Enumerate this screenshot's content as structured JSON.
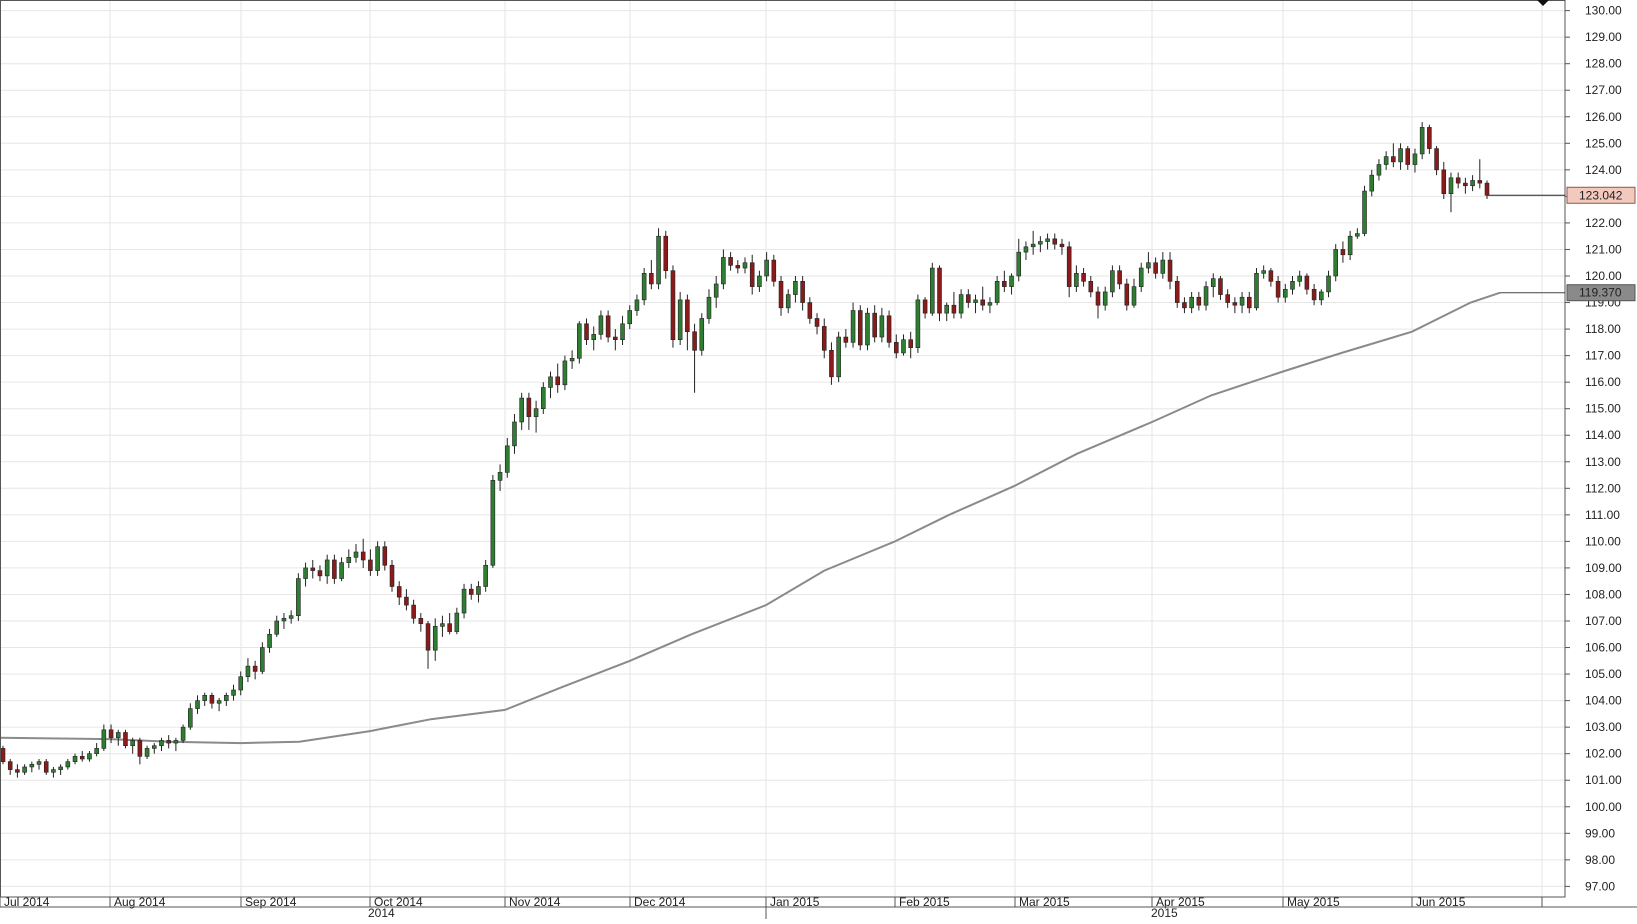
{
  "chart_data": {
    "type": "candlestick",
    "y_axis": {
      "ylim": [
        96.6,
        130.4
      ],
      "ticks": [
        "130.00",
        "129.00",
        "128.00",
        "127.00",
        "126.00",
        "125.00",
        "124.00",
        "123.00",
        "122.00",
        "121.00",
        "120.00",
        "119.00",
        "118.00",
        "117.00",
        "116.00",
        "115.00",
        "114.00",
        "113.00",
        "112.00",
        "111.00",
        "110.00",
        "109.00",
        "108.00",
        "107.00",
        "106.00",
        "105.00",
        "104.00",
        "103.00",
        "102.00",
        "101.00",
        "100.00",
        "99.00",
        "98.00",
        "97.00"
      ],
      "position": "right"
    },
    "x_axis": {
      "months": [
        "Jul 2014",
        "Aug 2014",
        "Sep 2014",
        "Oct 2014",
        "Nov 2014",
        "Dec 2014",
        "Jan 2015",
        "Feb 2015",
        "Mar 2015",
        "Apr 2015",
        "May 2015",
        "Jun 2015"
      ],
      "years": [
        "2014",
        "2015"
      ]
    },
    "grid": true,
    "last_price": {
      "value": 123.042,
      "label": "123.042",
      "color": "#f4c9bd"
    },
    "moving_average": {
      "label": "119.370",
      "value": 119.37,
      "color": "#8a8a8a",
      "points": [
        [
          "Jul 1 2014",
          102.6
        ],
        [
          "Aug 1 2014",
          102.55
        ],
        [
          "Aug 15 2014",
          102.45
        ],
        [
          "Sep 1 2014",
          102.4
        ],
        [
          "Sep 15 2014",
          102.45
        ],
        [
          "Oct 1 2014",
          102.85
        ],
        [
          "Oct 15 2014",
          103.3
        ],
        [
          "Nov 1 2014",
          103.65
        ],
        [
          "Nov 15 2014",
          104.5
        ],
        [
          "Dec 1 2014",
          105.5
        ],
        [
          "Dec 15 2014",
          106.5
        ],
        [
          "Jan 1 2015",
          107.6
        ],
        [
          "Jan 15 2015",
          108.9
        ],
        [
          "Feb 1 2015",
          110.0
        ],
        [
          "Feb 15 2015",
          111.0
        ],
        [
          "Mar 1 2015",
          112.1
        ],
        [
          "Mar 15 2015",
          113.3
        ],
        [
          "Apr 1 2015",
          114.5
        ],
        [
          "Apr 15 2015",
          115.5
        ],
        [
          "May 1 2015",
          116.4
        ],
        [
          "May 15 2015",
          117.1
        ],
        [
          "Jun 1 2015",
          117.9
        ],
        [
          "Jun 15 2015",
          119.0
        ],
        [
          "Jun 22 2015",
          119.37
        ]
      ]
    },
    "up_color": "#2e7d32",
    "down_color": "#8b1a1a",
    "candles": [
      [
        102.2,
        102.3,
        101.6,
        101.7
      ],
      [
        101.7,
        101.8,
        101.2,
        101.4
      ],
      [
        101.4,
        101.6,
        101.1,
        101.3
      ],
      [
        101.3,
        101.6,
        101.2,
        101.5
      ],
      [
        101.5,
        101.7,
        101.3,
        101.6
      ],
      [
        101.6,
        101.8,
        101.4,
        101.7
      ],
      [
        101.7,
        101.8,
        101.2,
        101.3
      ],
      [
        101.3,
        101.5,
        101.1,
        101.4
      ],
      [
        101.4,
        101.6,
        101.2,
        101.5
      ],
      [
        101.5,
        101.8,
        101.4,
        101.7
      ],
      [
        101.7,
        102.0,
        101.6,
        101.9
      ],
      [
        101.9,
        102.1,
        101.7,
        101.8
      ],
      [
        101.8,
        102.1,
        101.7,
        102.0
      ],
      [
        102.0,
        102.4,
        101.9,
        102.2
      ],
      [
        102.2,
        103.1,
        102.1,
        102.9
      ],
      [
        102.9,
        103.1,
        102.4,
        102.6
      ],
      [
        102.6,
        102.9,
        102.3,
        102.8
      ],
      [
        102.8,
        102.9,
        102.2,
        102.3
      ],
      [
        102.3,
        102.6,
        102.0,
        102.5
      ],
      [
        102.5,
        102.6,
        101.6,
        101.9
      ],
      [
        101.9,
        102.3,
        101.8,
        102.2
      ],
      [
        102.2,
        102.4,
        102.0,
        102.3
      ],
      [
        102.3,
        102.6,
        102.1,
        102.5
      ],
      [
        102.5,
        102.7,
        102.2,
        102.4
      ],
      [
        102.4,
        102.6,
        102.1,
        102.5
      ],
      [
        102.5,
        103.1,
        102.4,
        103.0
      ],
      [
        103.0,
        103.9,
        102.9,
        103.7
      ],
      [
        103.7,
        104.2,
        103.5,
        104.0
      ],
      [
        104.0,
        104.3,
        103.8,
        104.2
      ],
      [
        104.2,
        104.3,
        103.7,
        103.9
      ],
      [
        103.9,
        104.1,
        103.6,
        104.0
      ],
      [
        104.0,
        104.3,
        103.8,
        104.2
      ],
      [
        104.2,
        104.6,
        104.0,
        104.4
      ],
      [
        104.4,
        105.1,
        104.2,
        104.9
      ],
      [
        104.9,
        105.6,
        104.7,
        105.3
      ],
      [
        105.3,
        105.5,
        104.8,
        105.1
      ],
      [
        105.1,
        106.2,
        105.0,
        106.0
      ],
      [
        106.0,
        106.7,
        105.8,
        106.5
      ],
      [
        106.5,
        107.2,
        106.4,
        107.0
      ],
      [
        107.0,
        107.3,
        106.7,
        107.1
      ],
      [
        107.1,
        107.4,
        106.9,
        107.2
      ],
      [
        107.2,
        108.8,
        107.0,
        108.6
      ],
      [
        108.6,
        109.2,
        108.3,
        109.0
      ],
      [
        109.0,
        109.3,
        108.6,
        108.9
      ],
      [
        108.9,
        109.1,
        108.5,
        108.7
      ],
      [
        108.7,
        109.5,
        108.4,
        109.3
      ],
      [
        109.3,
        109.5,
        108.4,
        108.6
      ],
      [
        108.6,
        109.4,
        108.5,
        109.2
      ],
      [
        109.2,
        109.7,
        109.0,
        109.4
      ],
      [
        109.4,
        109.9,
        109.2,
        109.6
      ],
      [
        109.6,
        110.1,
        109.0,
        109.3
      ],
      [
        109.3,
        109.7,
        108.7,
        108.9
      ],
      [
        108.9,
        110.0,
        108.7,
        109.8
      ],
      [
        109.8,
        110.0,
        108.9,
        109.1
      ],
      [
        109.1,
        109.3,
        108.1,
        108.3
      ],
      [
        108.3,
        108.5,
        107.6,
        107.9
      ],
      [
        107.9,
        108.2,
        107.4,
        107.6
      ],
      [
        107.6,
        107.8,
        106.9,
        107.1
      ],
      [
        107.1,
        107.3,
        106.6,
        106.9
      ],
      [
        106.9,
        107.0,
        105.2,
        105.9
      ],
      [
        105.9,
        107.1,
        105.5,
        106.8
      ],
      [
        106.8,
        107.2,
        106.4,
        106.9
      ],
      [
        106.9,
        107.3,
        106.5,
        106.6
      ],
      [
        106.6,
        107.5,
        106.5,
        107.3
      ],
      [
        107.3,
        108.4,
        107.1,
        108.2
      ],
      [
        108.2,
        108.4,
        107.8,
        108.0
      ],
      [
        108.0,
        108.5,
        107.7,
        108.3
      ],
      [
        108.3,
        109.3,
        108.1,
        109.1
      ],
      [
        109.1,
        112.5,
        109.0,
        112.3
      ],
      [
        112.3,
        112.9,
        111.9,
        112.6
      ],
      [
        112.6,
        113.9,
        112.4,
        113.6
      ],
      [
        113.6,
        114.8,
        113.3,
        114.5
      ],
      [
        114.5,
        115.6,
        114.2,
        115.4
      ],
      [
        115.4,
        115.6,
        114.2,
        114.7
      ],
      [
        114.7,
        115.3,
        114.1,
        115.0
      ],
      [
        115.0,
        116.0,
        114.8,
        115.8
      ],
      [
        115.8,
        116.4,
        115.4,
        116.2
      ],
      [
        116.2,
        116.7,
        115.6,
        115.9
      ],
      [
        115.9,
        117.0,
        115.7,
        116.8
      ],
      [
        116.8,
        117.2,
        116.5,
        116.9
      ],
      [
        116.9,
        118.3,
        116.7,
        118.2
      ],
      [
        118.2,
        118.4,
        117.4,
        117.6
      ],
      [
        117.6,
        118.1,
        117.2,
        117.8
      ],
      [
        117.8,
        118.7,
        117.6,
        118.5
      ],
      [
        118.5,
        118.7,
        117.5,
        117.7
      ],
      [
        117.7,
        118.0,
        117.2,
        117.6
      ],
      [
        117.6,
        118.5,
        117.4,
        118.2
      ],
      [
        118.2,
        118.9,
        118.0,
        118.7
      ],
      [
        118.7,
        119.3,
        118.5,
        119.1
      ],
      [
        119.1,
        120.3,
        118.9,
        120.1
      ],
      [
        120.1,
        120.6,
        119.5,
        119.7
      ],
      [
        119.7,
        121.8,
        119.5,
        121.5
      ],
      [
        121.5,
        121.7,
        119.9,
        120.2
      ],
      [
        120.2,
        120.4,
        117.3,
        117.6
      ],
      [
        117.6,
        119.4,
        117.4,
        119.1
      ],
      [
        119.1,
        119.3,
        117.2,
        117.9
      ],
      [
        117.9,
        118.2,
        115.6,
        117.2
      ],
      [
        117.2,
        118.6,
        117.0,
        118.4
      ],
      [
        118.4,
        119.5,
        118.2,
        119.2
      ],
      [
        119.2,
        120.0,
        118.8,
        119.7
      ],
      [
        119.7,
        121.0,
        119.5,
        120.7
      ],
      [
        120.7,
        120.9,
        120.2,
        120.4
      ],
      [
        120.4,
        120.6,
        120.1,
        120.3
      ],
      [
        120.3,
        120.7,
        120.1,
        120.5
      ],
      [
        120.5,
        120.8,
        119.3,
        119.6
      ],
      [
        119.6,
        120.2,
        119.4,
        120.0
      ],
      [
        120.0,
        120.9,
        119.8,
        120.6
      ],
      [
        120.6,
        120.8,
        119.6,
        119.8
      ],
      [
        119.8,
        120.0,
        118.5,
        118.8
      ],
      [
        118.8,
        119.5,
        118.6,
        119.3
      ],
      [
        119.3,
        120.0,
        119.0,
        119.8
      ],
      [
        119.8,
        120.0,
        118.7,
        119.0
      ],
      [
        119.0,
        119.2,
        118.2,
        118.4
      ],
      [
        118.4,
        118.6,
        117.8,
        118.1
      ],
      [
        118.1,
        118.4,
        116.9,
        117.2
      ],
      [
        117.2,
        117.5,
        115.9,
        116.2
      ],
      [
        116.2,
        117.9,
        116.0,
        117.7
      ],
      [
        117.7,
        118.0,
        117.3,
        117.5
      ],
      [
        117.5,
        119.0,
        117.3,
        118.7
      ],
      [
        118.7,
        118.9,
        117.2,
        117.4
      ],
      [
        117.4,
        118.8,
        117.2,
        118.6
      ],
      [
        118.6,
        118.9,
        117.5,
        117.7
      ],
      [
        117.7,
        118.8,
        117.5,
        118.5
      ],
      [
        118.5,
        118.7,
        117.3,
        117.5
      ],
      [
        117.5,
        117.8,
        116.9,
        117.1
      ],
      [
        117.1,
        117.8,
        117.0,
        117.6
      ],
      [
        117.6,
        117.9,
        116.9,
        117.3
      ],
      [
        117.3,
        119.3,
        117.1,
        119.1
      ],
      [
        119.1,
        119.2,
        118.4,
        118.6
      ],
      [
        118.6,
        120.5,
        118.5,
        120.3
      ],
      [
        120.3,
        120.4,
        118.3,
        118.6
      ],
      [
        118.6,
        119.0,
        118.3,
        118.9
      ],
      [
        118.9,
        119.4,
        118.4,
        118.6
      ],
      [
        118.6,
        119.5,
        118.4,
        119.3
      ],
      [
        119.3,
        119.5,
        118.8,
        119.0
      ],
      [
        119.0,
        119.3,
        118.6,
        119.1
      ],
      [
        119.1,
        119.6,
        118.7,
        118.9
      ],
      [
        118.9,
        119.2,
        118.6,
        119.0
      ],
      [
        119.0,
        120.0,
        118.9,
        119.8
      ],
      [
        119.8,
        120.2,
        119.4,
        119.6
      ],
      [
        119.6,
        120.1,
        119.3,
        120.0
      ],
      [
        120.0,
        121.4,
        119.8,
        120.9
      ],
      [
        120.9,
        121.3,
        120.6,
        121.1
      ],
      [
        121.1,
        121.7,
        120.8,
        121.2
      ],
      [
        121.2,
        121.5,
        120.9,
        121.3
      ],
      [
        121.3,
        121.6,
        121.0,
        121.4
      ],
      [
        121.4,
        121.6,
        121.0,
        121.2
      ],
      [
        121.2,
        121.4,
        120.8,
        121.1
      ],
      [
        121.1,
        121.3,
        119.2,
        119.6
      ],
      [
        119.6,
        120.4,
        119.4,
        120.1
      ],
      [
        120.1,
        120.3,
        119.6,
        119.8
      ],
      [
        119.8,
        120.0,
        119.2,
        119.4
      ],
      [
        119.4,
        119.6,
        118.4,
        118.9
      ],
      [
        118.9,
        119.6,
        118.7,
        119.4
      ],
      [
        119.4,
        120.4,
        119.2,
        120.2
      ],
      [
        120.2,
        120.4,
        119.5,
        119.7
      ],
      [
        119.7,
        119.9,
        118.7,
        118.9
      ],
      [
        118.9,
        119.9,
        118.8,
        119.6
      ],
      [
        119.6,
        120.5,
        119.4,
        120.3
      ],
      [
        120.3,
        120.9,
        120.1,
        120.5
      ],
      [
        120.5,
        120.7,
        119.9,
        120.1
      ],
      [
        120.1,
        120.9,
        119.9,
        120.6
      ],
      [
        120.6,
        120.9,
        119.5,
        119.8
      ],
      [
        119.8,
        120.0,
        118.8,
        119.0
      ],
      [
        119.0,
        119.2,
        118.6,
        118.8
      ],
      [
        118.8,
        119.4,
        118.6,
        119.2
      ],
      [
        119.2,
        119.4,
        118.7,
        118.9
      ],
      [
        118.9,
        119.8,
        118.7,
        119.6
      ],
      [
        119.6,
        120.1,
        119.2,
        119.9
      ],
      [
        119.9,
        120.0,
        119.1,
        119.3
      ],
      [
        119.3,
        119.5,
        118.8,
        119.0
      ],
      [
        119.0,
        119.2,
        118.6,
        118.9
      ],
      [
        118.9,
        119.4,
        118.6,
        119.2
      ],
      [
        119.2,
        119.4,
        118.6,
        118.8
      ],
      [
        118.8,
        120.3,
        118.7,
        120.1
      ],
      [
        120.1,
        120.4,
        119.9,
        120.2
      ],
      [
        120.2,
        120.3,
        119.6,
        119.8
      ],
      [
        119.8,
        120.0,
        119.0,
        119.2
      ],
      [
        119.2,
        119.7,
        119.0,
        119.5
      ],
      [
        119.5,
        120.0,
        119.3,
        119.8
      ],
      [
        119.8,
        120.2,
        119.6,
        120.0
      ],
      [
        120.0,
        120.1,
        119.3,
        119.5
      ],
      [
        119.5,
        119.7,
        118.9,
        119.1
      ],
      [
        119.1,
        119.5,
        118.9,
        119.4
      ],
      [
        119.4,
        120.2,
        119.2,
        120.0
      ],
      [
        120.0,
        121.2,
        119.8,
        121.0
      ],
      [
        121.0,
        121.3,
        120.5,
        120.8
      ],
      [
        120.8,
        121.7,
        120.6,
        121.5
      ],
      [
        121.5,
        121.8,
        121.4,
        121.6
      ],
      [
        121.6,
        123.4,
        121.5,
        123.2
      ],
      [
        123.2,
        124.0,
        123.0,
        123.8
      ],
      [
        123.8,
        124.4,
        123.6,
        124.2
      ],
      [
        124.2,
        124.7,
        124.0,
        124.5
      ],
      [
        124.5,
        125.0,
        124.1,
        124.3
      ],
      [
        124.3,
        125.0,
        124.0,
        124.8
      ],
      [
        124.8,
        124.9,
        124.0,
        124.2
      ],
      [
        124.2,
        124.8,
        123.9,
        124.6
      ],
      [
        124.6,
        125.8,
        124.4,
        125.6
      ],
      [
        125.6,
        125.7,
        124.6,
        124.8
      ],
      [
        124.8,
        124.9,
        123.8,
        124.0
      ],
      [
        124.0,
        124.3,
        122.9,
        123.1
      ],
      [
        123.1,
        123.9,
        122.4,
        123.7
      ],
      [
        123.7,
        123.9,
        123.3,
        123.5
      ],
      [
        123.5,
        123.7,
        123.1,
        123.4
      ],
      [
        123.4,
        123.8,
        123.2,
        123.6
      ],
      [
        123.6,
        124.4,
        123.3,
        123.5
      ],
      [
        123.5,
        123.6,
        122.9,
        123.042
      ]
    ]
  }
}
